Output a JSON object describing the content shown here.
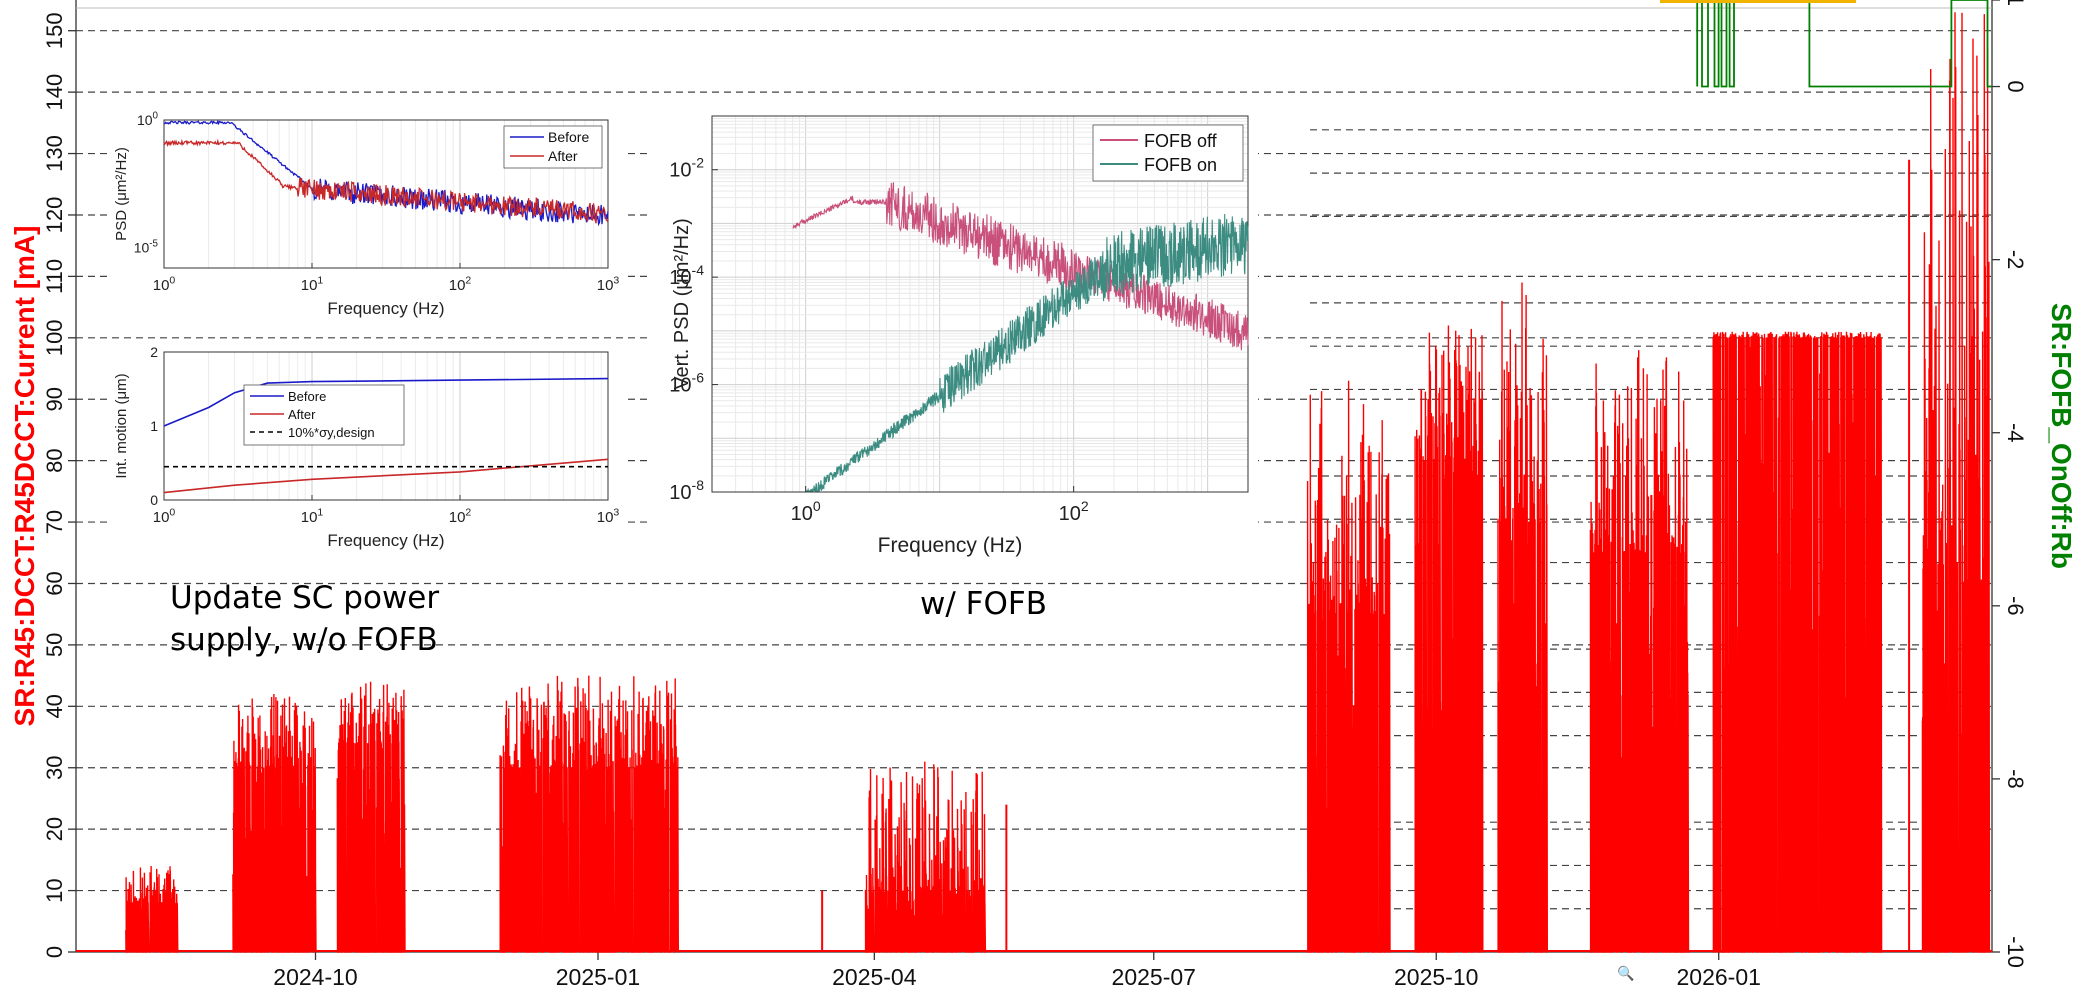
{
  "chart_data": [
    {
      "type": "line",
      "title": "",
      "left_axis": {
        "label": "SR:R45:DCCT:R45DCCT:Current [mA]",
        "ylim": [
          0,
          155
        ],
        "ticks": [
          0,
          10,
          20,
          30,
          40,
          50,
          60,
          70,
          80,
          90,
          100,
          110,
          120,
          130,
          140,
          150
        ],
        "color": "#ff0000"
      },
      "right_axis": {
        "label": "SR:FOFB_OnOff:Rb",
        "ylim": [
          -10,
          1
        ],
        "ticks": [
          -10,
          -8,
          -6,
          -4,
          -2,
          0,
          1
        ],
        "color": "#008000"
      },
      "x_axis": {
        "type": "date",
        "range": [
          "2024-07-15",
          "2026-03-31"
        ],
        "ticks": [
          "2024-10",
          "2025-01",
          "2025-04",
          "2025-07",
          "2025-10",
          "2026-01"
        ]
      },
      "grid": "dashed horizontal",
      "series": [
        {
          "axis": "left",
          "color": "#ff0000",
          "style": "dense beam current fills",
          "segments": [
            {
              "start": "2024-07-31",
              "end": "2024-08-17",
              "peak": 14,
              "level": 8
            },
            {
              "start": "2024-09-04",
              "end": "2024-10-01",
              "peak": 42,
              "level": 30
            },
            {
              "start": "2024-10-08",
              "end": "2024-10-30",
              "peak": 44,
              "level": 34
            },
            {
              "start": "2024-11-30",
              "end": "2025-01-27",
              "peak": 45,
              "level": 30
            },
            {
              "start": "2025-03-29",
              "end": "2025-05-07",
              "peak": 31,
              "level": 10
            },
            {
              "start": "2025-08-20",
              "end": "2025-09-16",
              "peak": 93,
              "level": 55
            },
            {
              "start": "2025-09-24",
              "end": "2025-10-16",
              "peak": 102,
              "level": 80
            },
            {
              "start": "2025-10-21",
              "end": "2025-11-06",
              "peak": 109,
              "level": 70
            },
            {
              "start": "2025-11-20",
              "end": "2025-12-22",
              "peak": 98,
              "level": 65
            },
            {
              "start": "2025-12-30",
              "end": "2026-02-23",
              "peak": 101,
              "level": 100
            },
            {
              "start": "2026-03-08",
              "end": "2026-03-30",
              "peak": 153,
              "level": 60
            }
          ],
          "isolated_spikes": [
            {
              "date": "2025-03-15",
              "value": 10
            },
            {
              "date": "2025-05-14",
              "value": 24
            },
            {
              "date": "2026-03-04",
              "value": 129
            }
          ]
        },
        {
          "axis": "right",
          "color": "#008000",
          "style": "binary on/off step (0 / 1)",
          "range": [
            "2025-12-25",
            "2026-03-31"
          ]
        }
      ]
    },
    {
      "type": "line",
      "panel": "inset-psd-top",
      "xlabel": "Frequency (Hz)",
      "ylabel": "PSD (μm²/Hz)",
      "xscale": "log",
      "yscale": "log",
      "xlim": [
        1,
        1000
      ],
      "ytick_labels": [
        "10^0",
        "10^-5"
      ],
      "xtick_labels": [
        "10^0",
        "10^1",
        "10^2",
        "10^3"
      ],
      "legend": "top-right",
      "series": [
        {
          "name": "Before",
          "color": "#1a1ac8"
        },
        {
          "name": "After",
          "color": "#c82828"
        }
      ]
    },
    {
      "type": "line",
      "panel": "inset-int-motion",
      "xlabel": "Frequency (Hz)",
      "ylabel": "Int. motion (μm)",
      "xscale": "log",
      "xlim": [
        1,
        1000
      ],
      "ylim": [
        0,
        2
      ],
      "ytick_labels": [
        "0",
        "1",
        "2"
      ],
      "xtick_labels": [
        "10^0",
        "10^1",
        "10^2",
        "10^3"
      ],
      "legend": "inside-left",
      "series": [
        {
          "name": "Before",
          "color": "#1a1ac8",
          "x": [
            1,
            2,
            3,
            5,
            10,
            100,
            1000
          ],
          "y": [
            1.0,
            1.25,
            1.45,
            1.58,
            1.6,
            1.62,
            1.64
          ]
        },
        {
          "name": "After",
          "color": "#c82828",
          "x": [
            1,
            3,
            10,
            100,
            1000
          ],
          "y": [
            0.1,
            0.2,
            0.28,
            0.38,
            0.55
          ]
        },
        {
          "name": "10%*σy,design",
          "color": "#000000",
          "style": "dashed",
          "x": [
            1,
            1000
          ],
          "y": [
            0.45,
            0.45
          ]
        }
      ]
    },
    {
      "type": "line",
      "panel": "inset-vert-psd",
      "xlabel": "Frequency (Hz)",
      "ylabel": "Vert. PSD (μm²/Hz)",
      "xscale": "log",
      "yscale": "log",
      "xlim": [
        0.2,
        2000
      ],
      "ylim": [
        1e-08,
        0.1
      ],
      "xtick_labels": [
        "10^0",
        "10^2"
      ],
      "ytick_labels": [
        "10^-8",
        "10^-6",
        "10^-4",
        "10^-2"
      ],
      "legend": "top-right",
      "series": [
        {
          "name": "FOFB off",
          "color": "#c8507a"
        },
        {
          "name": "FOFB on",
          "color": "#3c8c82"
        }
      ]
    }
  ],
  "annotations": {
    "left_note": "Update SC power\nsupply, w/o FOFB",
    "right_note": "w/ FOFB"
  },
  "ui": {
    "magnifier_glyph": "🔍"
  }
}
